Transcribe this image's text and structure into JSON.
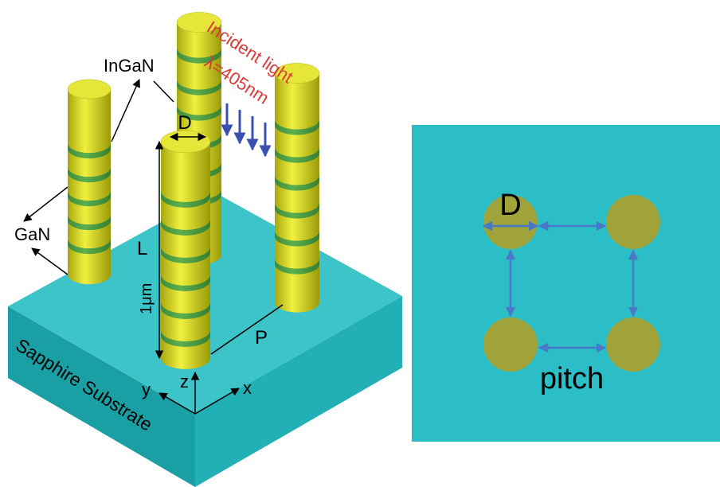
{
  "left": {
    "ingan": "InGaN",
    "incident": "Incident light",
    "wavelength": "λ=405nm",
    "diameter": "D",
    "gan": "GaN",
    "length": "L",
    "height": "1μm",
    "period": "P",
    "substrate": "Sapphire Substrate",
    "axes": {
      "z": "z",
      "y": "y",
      "x": "x"
    }
  },
  "right": {
    "diameter": "D",
    "pitch": "pitch"
  }
}
